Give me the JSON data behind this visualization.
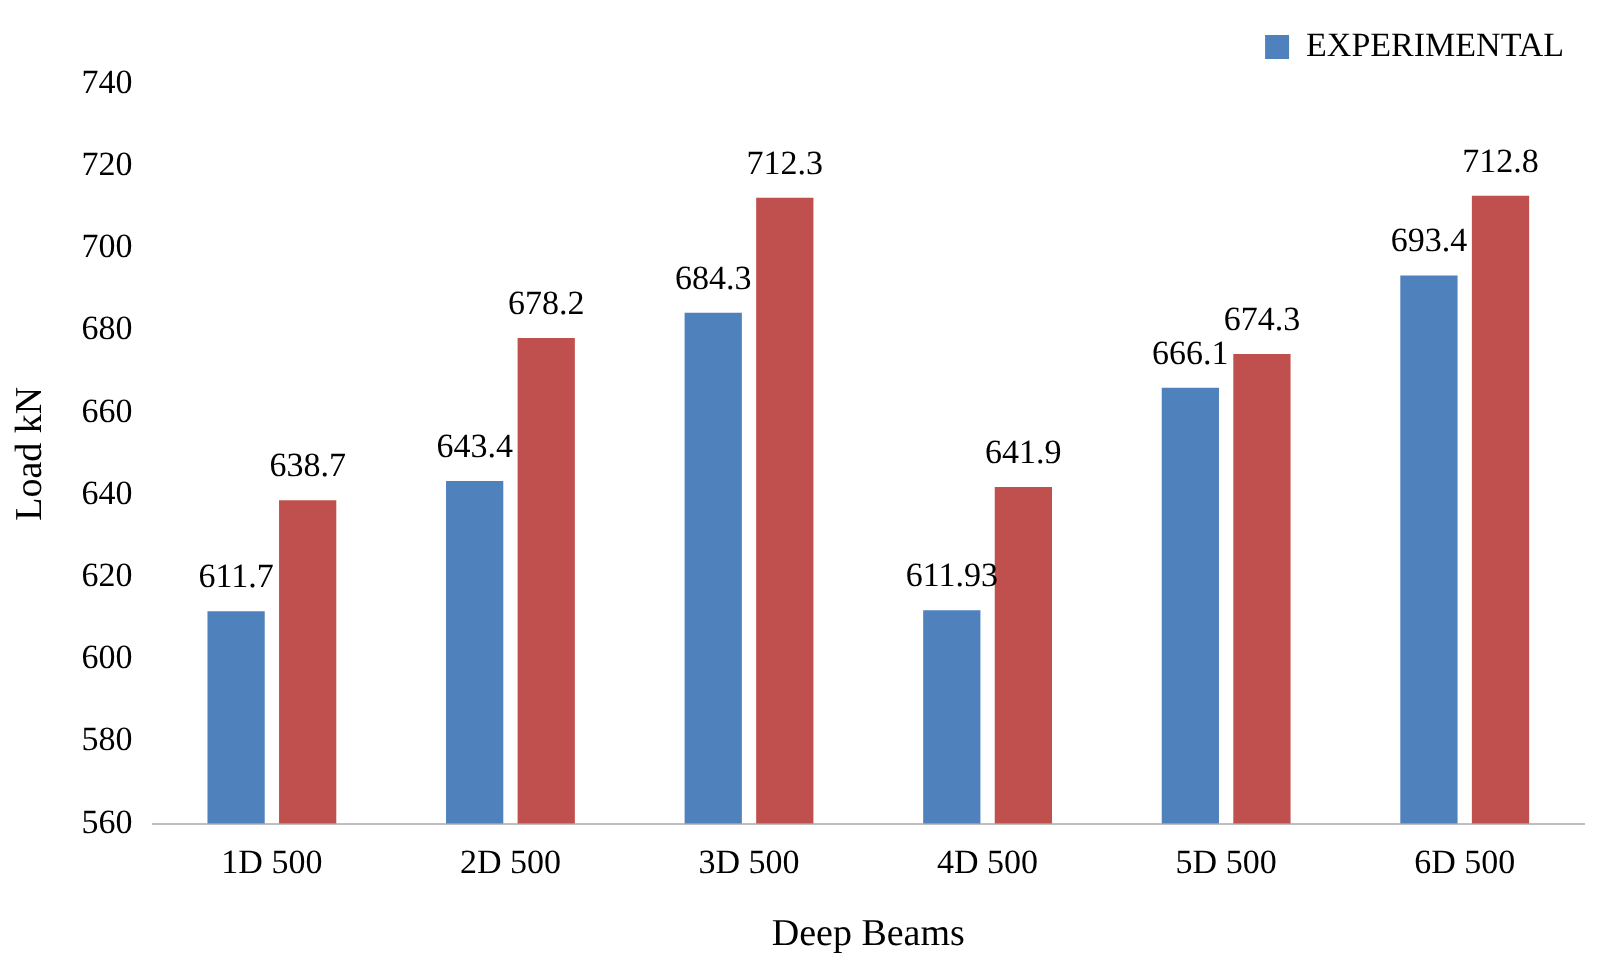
{
  "chart_data": {
    "type": "bar",
    "xlabel": "Deep Beams",
    "ylabel": "Load kN",
    "categories": [
      "1D 500",
      "2D 500",
      "3D 500",
      "4D 500",
      "5D 500",
      "6D 500"
    ],
    "series": [
      {
        "name": "EXPERIMENTAL",
        "color": "#4f81bd",
        "values": [
          611.7,
          643.4,
          684.3,
          611.93,
          666.1,
          693.4
        ]
      },
      {
        "color": "#c0504d",
        "values": [
          638.7,
          678.2,
          712.3,
          641.9,
          674.3,
          712.8
        ]
      }
    ],
    "ylim": [
      560,
      740
    ],
    "yticks": [
      560,
      580,
      600,
      620,
      640,
      660,
      680,
      700,
      720,
      740
    ],
    "grid": false,
    "legend": "top right",
    "data_labels": true
  }
}
